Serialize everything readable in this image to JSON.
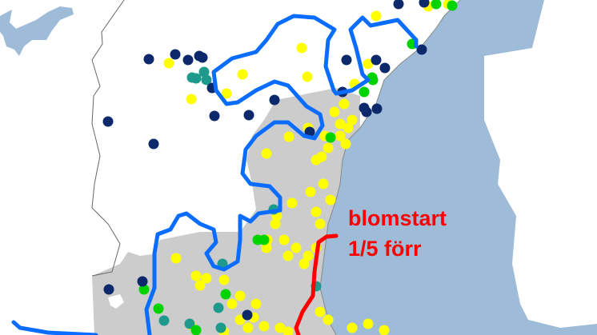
{
  "annotation": {
    "line1": "blomstart",
    "line2": "1/5 förr"
  },
  "colors": {
    "sea": "#9ebbd8",
    "land": "#ffffff",
    "shaded_region": "#cccccc",
    "boundary_line": "#0a6dff",
    "earlier_start_line": "#ff0000",
    "annotation_text": "#ff0000",
    "dot_navy": "#0c2a6b",
    "dot_yellow": "#ffff00",
    "dot_green": "#00d400",
    "dot_teal": "#1e9a8d"
  }
}
